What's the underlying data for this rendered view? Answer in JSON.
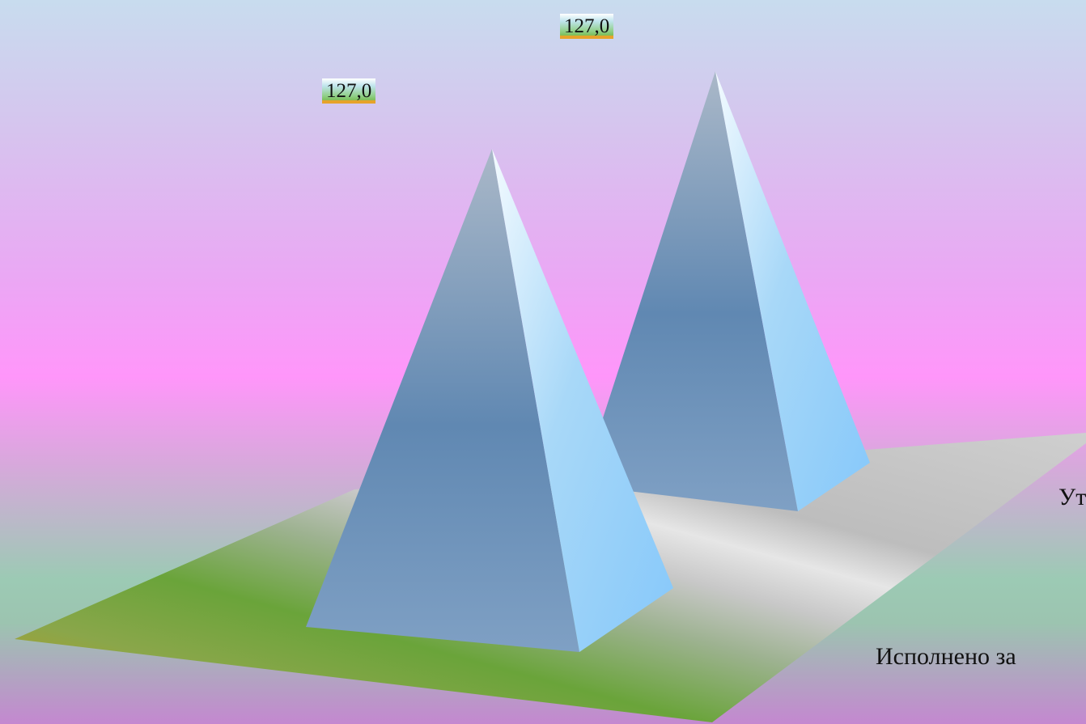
{
  "chart_data": {
    "type": "bar",
    "bar_shape": "pyramid",
    "projection": "3d",
    "categories": [
      "",
      ""
    ],
    "series": [
      {
        "values": [
          127.0,
          127.0
        ]
      }
    ],
    "data_labels": [
      "127,0",
      "127,0"
    ],
    "title": "",
    "xlabel": "",
    "ylabel": "",
    "grid": false,
    "legend": "none"
  },
  "annotations": {
    "partial_text_top": "Ут",
    "partial_text_bottom": "Исполнено за"
  },
  "colors": {
    "pyramid_light": "#8fd0ff",
    "pyramid_dark": "#5f86b0",
    "floor_gold": "#c89a18",
    "floor_green": "#6aa43a",
    "floor_silver": "#c8c8c8"
  }
}
